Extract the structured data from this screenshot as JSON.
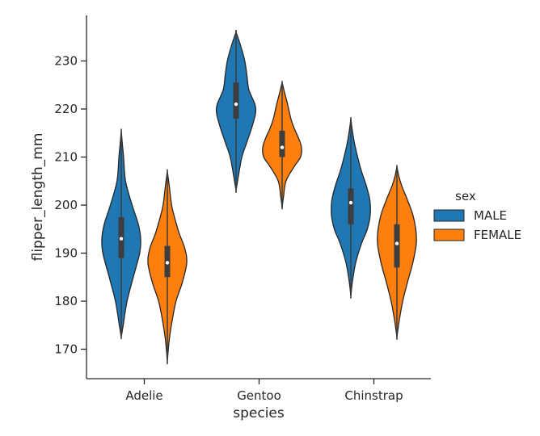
{
  "chart_data": {
    "type": "violin",
    "xlabel": "species",
    "ylabel": "flipper_length_mm",
    "categories": [
      "Adelie",
      "Gentoo",
      "Chinstrap"
    ],
    "ylim": [
      164,
      239
    ],
    "yticks": [
      170,
      180,
      190,
      200,
      210,
      220,
      230
    ],
    "legend": {
      "title": "sex",
      "position": "right"
    },
    "series": [
      {
        "name": "MALE",
        "color": "#1f77b4",
        "violins": [
          {
            "category": "Adelie",
            "range": [
              172.5,
              215.5
            ],
            "median": 193,
            "q1": 189,
            "q3": 197.5,
            "profile": [
              [
                172.5,
                0
              ],
              [
                175,
                0.1
              ],
              [
                180,
                0.3
              ],
              [
                185,
                0.62
              ],
              [
                190,
                0.95
              ],
              [
                193,
                1
              ],
              [
                196,
                0.88
              ],
              [
                200,
                0.56
              ],
              [
                205,
                0.22
              ],
              [
                210,
                0.12
              ],
              [
                213,
                0.05
              ],
              [
                215.5,
                0
              ]
            ]
          },
          {
            "category": "Gentoo",
            "range": [
              203,
              236
            ],
            "median": 221,
            "q1": 218,
            "q3": 225.5,
            "profile": [
              [
                203,
                0
              ],
              [
                206,
                0.12
              ],
              [
                210,
                0.3
              ],
              [
                213,
                0.55
              ],
              [
                216,
                0.8
              ],
              [
                219,
                1
              ],
              [
                221,
                0.97
              ],
              [
                224,
                0.66
              ],
              [
                227,
                0.56
              ],
              [
                230,
                0.45
              ],
              [
                233,
                0.25
              ],
              [
                236,
                0
              ]
            ]
          },
          {
            "category": "Chinstrap",
            "range": [
              181,
              218
            ],
            "median": 200.5,
            "q1": 196,
            "q3": 203.5,
            "profile": [
              [
                181,
                0
              ],
              [
                184,
                0.08
              ],
              [
                188,
                0.25
              ],
              [
                192,
                0.55
              ],
              [
                195,
                0.85
              ],
              [
                198,
                1
              ],
              [
                201,
                0.98
              ],
              [
                204,
                0.8
              ],
              [
                207,
                0.55
              ],
              [
                210,
                0.35
              ],
              [
                213,
                0.18
              ],
              [
                216,
                0.06
              ],
              [
                218,
                0
              ]
            ]
          }
        ]
      },
      {
        "name": "FEMALE",
        "color": "#ff7f0e",
        "violins": [
          {
            "category": "Adelie",
            "range": [
              167.5,
              207
            ],
            "median": 188,
            "q1": 185,
            "q3": 191.5,
            "profile": [
              [
                167.5,
                0
              ],
              [
                172,
                0.1
              ],
              [
                176,
                0.25
              ],
              [
                180,
                0.45
              ],
              [
                184,
                0.78
              ],
              [
                188,
                1
              ],
              [
                191,
                0.9
              ],
              [
                194,
                0.62
              ],
              [
                197,
                0.4
              ],
              [
                200,
                0.22
              ],
              [
                204,
                0.1
              ],
              [
                207,
                0
              ]
            ]
          },
          {
            "category": "Gentoo",
            "range": [
              199.5,
              225.5
            ],
            "median": 212,
            "q1": 210,
            "q3": 215.5,
            "profile": [
              [
                199.5,
                0
              ],
              [
                202,
                0.08
              ],
              [
                205,
                0.2
              ],
              [
                208,
                0.62
              ],
              [
                210,
                0.95
              ],
              [
                212,
                1
              ],
              [
                214,
                0.84
              ],
              [
                216,
                0.62
              ],
              [
                218,
                0.45
              ],
              [
                221,
                0.28
              ],
              [
                223.5,
                0.12
              ],
              [
                225.5,
                0
              ]
            ]
          },
          {
            "category": "Chinstrap",
            "range": [
              172.5,
              208
            ],
            "median": 192,
            "q1": 187,
            "q3": 196,
            "profile": [
              [
                172.5,
                0
              ],
              [
                176,
                0.12
              ],
              [
                180,
                0.3
              ],
              [
                184,
                0.55
              ],
              [
                188,
                0.82
              ],
              [
                192,
                1
              ],
              [
                195,
                0.97
              ],
              [
                198,
                0.82
              ],
              [
                201,
                0.55
              ],
              [
                204,
                0.25
              ],
              [
                206,
                0.1
              ],
              [
                208,
                0
              ]
            ]
          }
        ]
      }
    ]
  }
}
